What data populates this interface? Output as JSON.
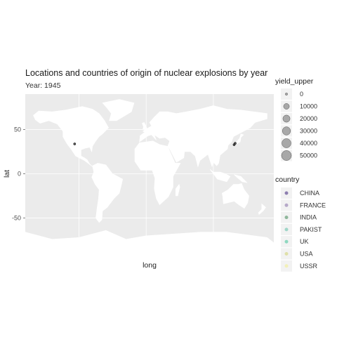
{
  "chart_data": {
    "type": "scatter",
    "title": "Locations and countries of origin of nuclear explosions by year",
    "subtitle": "Year: 1945",
    "xlabel": "long",
    "ylabel": "lat",
    "xlim": [
      -180,
      190
    ],
    "ylim": [
      -90,
      90
    ],
    "y_ticks": [
      50,
      0,
      -50
    ],
    "grid": true,
    "background": "#ebebeb",
    "land_color": "#ffffff",
    "points": [
      {
        "country": "USA",
        "long": -106.5,
        "lat": 33.7,
        "yield_upper": 19
      },
      {
        "country": "USA",
        "long": 130.9,
        "lat": 32.8,
        "yield_upper": 21
      },
      {
        "country": "USA",
        "long": 132.5,
        "lat": 34.4,
        "yield_upper": 15
      }
    ],
    "size_legend": {
      "title": "yield_upper",
      "values": [
        0,
        10000,
        20000,
        30000,
        40000,
        50000
      ]
    },
    "color_legend": {
      "title": "country",
      "entries": [
        {
          "name": "CHINA",
          "color": "#8e7fb0"
        },
        {
          "name": "FRANCE",
          "color": "#b6a9c9"
        },
        {
          "name": "INDIA",
          "color": "#8fb79b"
        },
        {
          "name": "PAKIST",
          "color": "#9fd6c8"
        },
        {
          "name": "UK",
          "color": "#8fd8c0"
        },
        {
          "name": "USA",
          "color": "#dfe0a8"
        },
        {
          "name": "USSR",
          "color": "#f2f0b8"
        }
      ]
    }
  }
}
